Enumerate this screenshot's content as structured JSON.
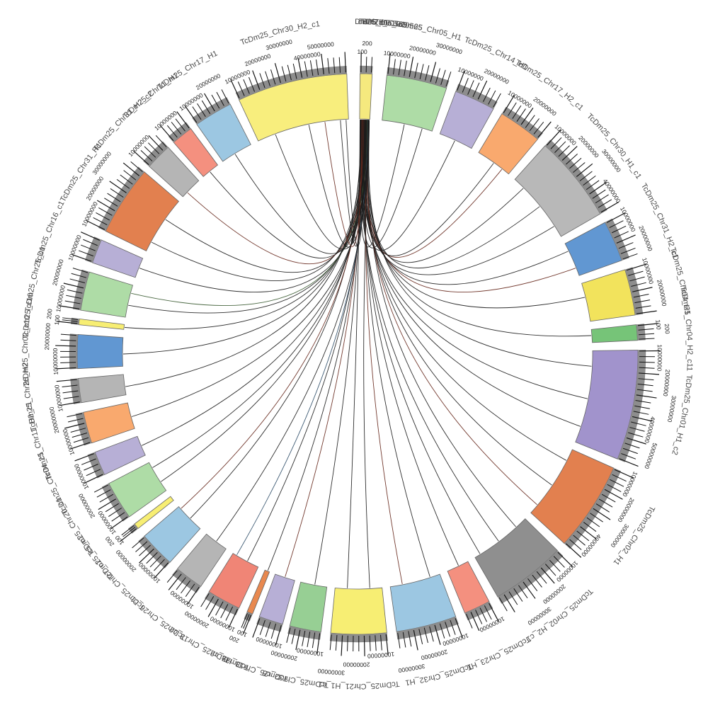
{
  "chart_data": {
    "type": "chord",
    "title": "",
    "description": "Circular synteny (circos) plot: links radiate from a small source region at top (RefTd05_000565) to chromosome segments of assembly TcDm25",
    "background": "#ffffff",
    "axis_label_step": "10000000",
    "small_segment_tick_labels": [
      "100",
      "200"
    ],
    "tick_label_color": "#1f1f1f",
    "name_label_color": "#4a4a4a",
    "axis_stripe_color": "#8d8d8d",
    "tick_color": "#141414",
    "source_cluster_labels": [
      {
        "text": "RefTd05_000565",
        "angle": 6.0
      },
      {
        "text": "Td05_000565",
        "angle": 4.4
      },
      {
        "text": "TcDm25_c1",
        "angle": 3.0
      }
    ],
    "segments": [
      {
        "label": "TcDm25_c1",
        "color": "#F5E97E",
        "start": 0.5,
        "end": 3.0
      },
      {
        "label": "TcDm25_Chr05_H1",
        "color": "#AEDCA6",
        "start": 6.0,
        "end": 18.5
      },
      {
        "label": "TcDm25_Chr14_H1",
        "color": "#B7AFD6",
        "start": 20.5,
        "end": 29.0
      },
      {
        "label": "TcDm25_Chr17_H2_c1",
        "color": "#F9A96E",
        "start": 31.0,
        "end": 40.0
      },
      {
        "label": "TcDm25_Chr30_H1_c1",
        "color": "#B8B8B8",
        "start": 42.0,
        "end": 60.0
      },
      {
        "label": "TcDm25_Chr31_H2_c1",
        "color": "#6197D2",
        "start": 62.0,
        "end": 70.5
      },
      {
        "label": "TcDm25_Chr04_H1",
        "color": "#F2E35C",
        "start": 72.5,
        "end": 82.0
      },
      {
        "label": "TcDm25_Chr04_H2_c11",
        "color": "#76C478",
        "start": 84.0,
        "end": 87.2
      },
      {
        "label": "TcDm25_Chr01_H1_c2",
        "color": "#A193CC",
        "start": 89.2,
        "end": 112.0
      },
      {
        "label": "TcDm25_Chr02_H1",
        "color": "#E2804F",
        "start": 114.0,
        "end": 132.5
      },
      {
        "label": "TcDm25_Chr02_H2_c1",
        "color": "#8F8F8F",
        "start": 134.5,
        "end": 150.0
      },
      {
        "label": "TcDm25_Chr23_H1",
        "color": "#F4907F",
        "start": 152.0,
        "end": 157.5
      },
      {
        "label": "TcDm25_Chr32_H1",
        "color": "#9CC7E2",
        "start": 159.5,
        "end": 172.0
      },
      {
        "label": "TcDm25_Chr21_H1_c1",
        "color": "#F7EE73",
        "start": 174.0,
        "end": 185.5
      },
      {
        "label": "TcDm25_Chr32_c6",
        "color": "#97CF94",
        "start": 187.5,
        "end": 194.0
      },
      {
        "label": "TcDm25_Chr18_H2",
        "color": "#B7AFD6",
        "start": 195.5,
        "end": 200.5
      },
      {
        "label": "TcDm25_c2",
        "color": "#E8884F",
        "start": 202.0,
        "end": 203.2
      },
      {
        "label": "TcDm25_Chr13_c2",
        "color": "#F08576",
        "start": 205.0,
        "end": 212.0
      },
      {
        "label": "TcDm25_Chr26_c1",
        "color": "#B5B5B5",
        "start": 214.0,
        "end": 220.0
      },
      {
        "label": "TcDm25_Chr27_c1",
        "color": "#9CC7E2",
        "start": 222.0,
        "end": 229.5
      },
      {
        "label": "TcDm25_c5_c1",
        "color": "#F7EE73",
        "start": 231.5,
        "end": 232.7
      },
      {
        "label": "TcDm25_Chr20_c1",
        "color": "#AEDCA6",
        "start": 234.5,
        "end": 242.5
      },
      {
        "label": "TcDm25_Chr04_c1",
        "color": "#B7AFD6",
        "start": 244.5,
        "end": 249.5
      },
      {
        "label": "TcDm25_Chr11_H2_c1",
        "color": "#F9A96E",
        "start": 251.5,
        "end": 258.0
      },
      {
        "label": "TcDm25_Chr26_H2",
        "color": "#B5B5B5",
        "start": 260.0,
        "end": 265.0
      },
      {
        "label": "TcDm25_Chr02_c10",
        "color": "#6197D2",
        "start": 267.0,
        "end": 274.0
      },
      {
        "label": "TcDm25_c10",
        "color": "#F7EE73",
        "start": 276.0,
        "end": 277.2
      },
      {
        "label": "TcDm25_Chr25_c1",
        "color": "#AEDCA6",
        "start": 279.0,
        "end": 287.0
      },
      {
        "label": "TcDm25_Chr16_c1",
        "color": "#B7AFD6",
        "start": 289.0,
        "end": 294.0
      },
      {
        "label": "TcDm25_Chr31_H1",
        "color": "#E2804F",
        "start": 296.0,
        "end": 310.5
      },
      {
        "label": "TcDm25_Chr31_H2_c2",
        "color": "#B5B5B5",
        "start": 312.0,
        "end": 317.5
      },
      {
        "label": "TcDm25_Chr11_H1",
        "color": "#F4907F",
        "start": 319.0,
        "end": 323.5
      },
      {
        "label": "TcDm25_Chr17_H1",
        "color": "#9CC7E2",
        "start": 325.0,
        "end": 333.0
      },
      {
        "label": "TcDm25_Chr30_H2_c1",
        "color": "#F8EE7D",
        "start": 335.0,
        "end": 357.8
      }
    ],
    "link_palette": {
      "k": "#1c1c1c",
      "r": "#67281c",
      "b": "#2e4d68",
      "g": "#3c5c33"
    },
    "source_angle_range": [
      0.6,
      2.9
    ],
    "links": [
      {
        "a": 11.5,
        "c": "k"
      },
      {
        "a": 16.0,
        "c": "k"
      },
      {
        "a": 24.5,
        "c": "k"
      },
      {
        "a": 35.5,
        "c": "k"
      },
      {
        "a": 38.0,
        "c": "r"
      },
      {
        "a": 45.0,
        "c": "k"
      },
      {
        "a": 51.0,
        "c": "k"
      },
      {
        "a": 57.0,
        "c": "k"
      },
      {
        "a": 64.0,
        "c": "k"
      },
      {
        "a": 68.5,
        "c": "r"
      },
      {
        "a": 76.0,
        "c": "k"
      },
      {
        "a": 85.5,
        "c": "k"
      },
      {
        "a": 93.0,
        "c": "k"
      },
      {
        "a": 101.0,
        "c": "k"
      },
      {
        "a": 108.0,
        "c": "k"
      },
      {
        "a": 117.0,
        "c": "k"
      },
      {
        "a": 124.0,
        "c": "k"
      },
      {
        "a": 130.0,
        "c": "r"
      },
      {
        "a": 137.5,
        "c": "k"
      },
      {
        "a": 143.0,
        "c": "k"
      },
      {
        "a": 148.5,
        "c": "k"
      },
      {
        "a": 154.5,
        "c": "k"
      },
      {
        "a": 162.0,
        "c": "k"
      },
      {
        "a": 169.0,
        "c": "r"
      },
      {
        "a": 177.0,
        "c": "k"
      },
      {
        "a": 182.5,
        "c": "k"
      },
      {
        "a": 190.5,
        "c": "k"
      },
      {
        "a": 198.0,
        "c": "r"
      },
      {
        "a": 202.5,
        "c": "k"
      },
      {
        "a": 208.0,
        "c": "k"
      },
      {
        "a": 211.0,
        "c": "b"
      },
      {
        "a": 217.0,
        "c": "k"
      },
      {
        "a": 225.5,
        "c": "k"
      },
      {
        "a": 228.8,
        "c": "r"
      },
      {
        "a": 237.0,
        "c": "k"
      },
      {
        "a": 241.0,
        "c": "k"
      },
      {
        "a": 247.0,
        "c": "k"
      },
      {
        "a": 254.5,
        "c": "k"
      },
      {
        "a": 262.0,
        "c": "k"
      },
      {
        "a": 270.0,
        "c": "k"
      },
      {
        "a": 276.5,
        "c": "k"
      },
      {
        "a": 282.0,
        "c": "k"
      },
      {
        "a": 285.0,
        "c": "g"
      },
      {
        "a": 291.5,
        "c": "k"
      },
      {
        "a": 298.5,
        "c": "k"
      },
      {
        "a": 305.0,
        "c": "k"
      },
      {
        "a": 313.5,
        "c": "r"
      },
      {
        "a": 321.0,
        "c": "k"
      },
      {
        "a": 328.5,
        "c": "k"
      },
      {
        "a": 339.5,
        "c": "k"
      },
      {
        "a": 348.0,
        "c": "k"
      },
      {
        "a": 352.0,
        "c": "r"
      },
      {
        "a": 355.8,
        "c": "k"
      },
      {
        "a": 357.2,
        "c": "k"
      }
    ]
  }
}
